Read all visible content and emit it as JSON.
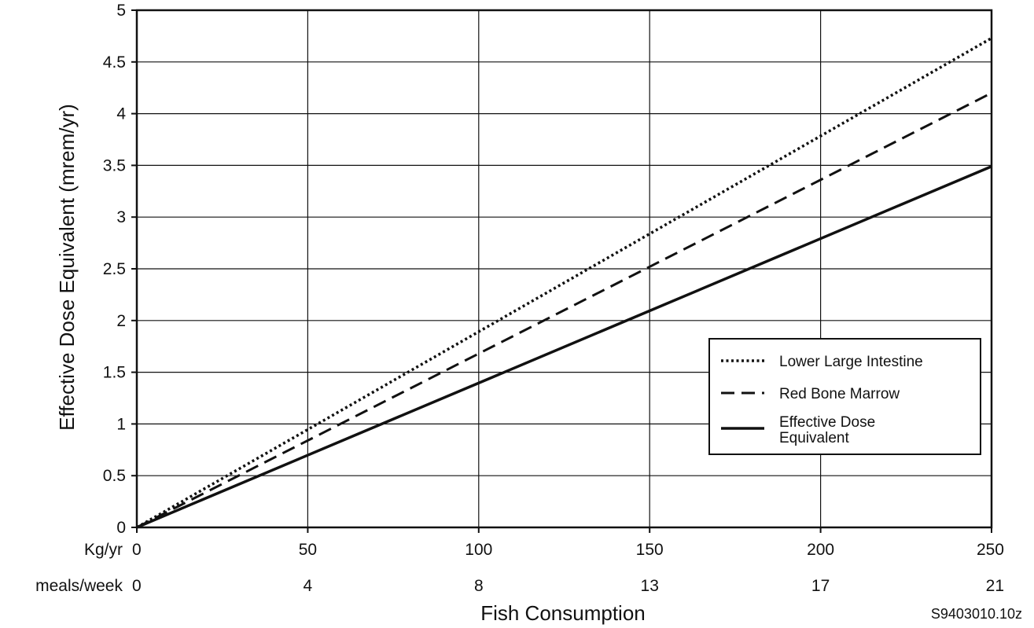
{
  "chart_data": {
    "type": "line",
    "title": "",
    "xlabel": "Fish Consumption",
    "ylabel": "Effective Dose Equivalent (mrem/yr)",
    "xlim": [
      0,
      250
    ],
    "ylim": [
      0,
      5
    ],
    "grid": true,
    "legend_position": "lower-right",
    "x_ticks": [
      0,
      50,
      100,
      150,
      200,
      250
    ],
    "y_ticks": [
      "0",
      "0.5",
      "1",
      "1.5",
      "2",
      "2.5",
      "3",
      "3.5",
      "4",
      "4.5",
      "5"
    ],
    "x_axis_rows": [
      {
        "label": "Kg/yr",
        "ticks": [
          "0",
          "50",
          "100",
          "150",
          "200",
          "250"
        ]
      },
      {
        "label": "meals/week",
        "ticks": [
          "0",
          "4",
          "8",
          "13",
          "17",
          "21"
        ]
      }
    ],
    "series": [
      {
        "name": "Lower Large Intestine",
        "style": "dotted",
        "x": [
          0,
          250
        ],
        "y": [
          0,
          4.73
        ]
      },
      {
        "name": "Red Bone Marrow",
        "style": "dashed",
        "x": [
          0,
          250
        ],
        "y": [
          0,
          4.2
        ]
      },
      {
        "name": "Effective Dose Equivalent",
        "name_lines": [
          "Effective Dose",
          "Equivalent"
        ],
        "style": "solid",
        "x": [
          0,
          250
        ],
        "y": [
          0,
          3.49
        ]
      }
    ],
    "annotation": "S9403010.10z"
  },
  "colors": {
    "line": "#111111",
    "grid": "#111111",
    "background": "#ffffff"
  }
}
